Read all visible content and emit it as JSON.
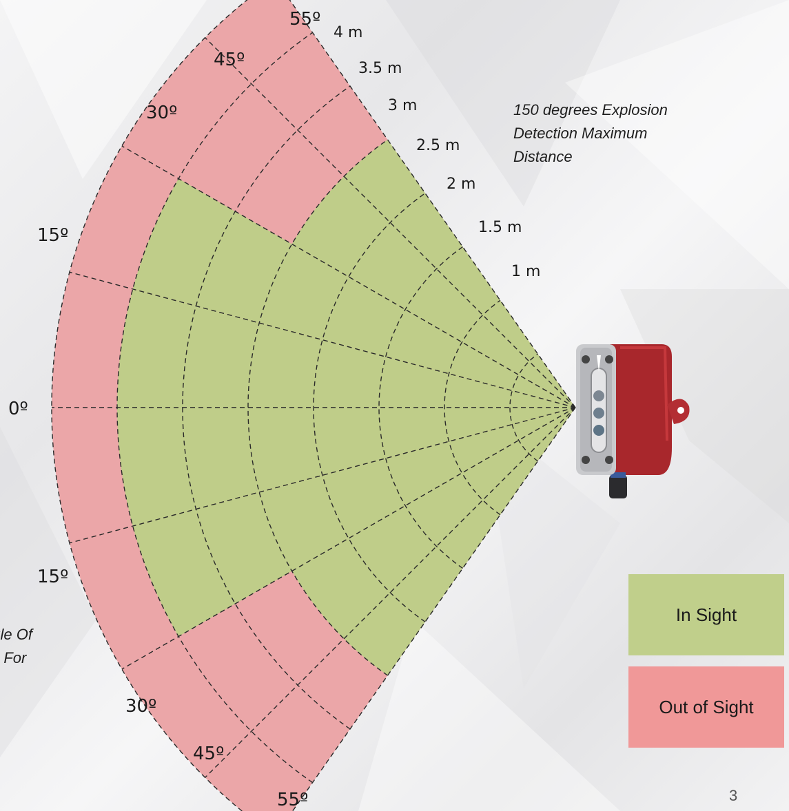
{
  "notes": {
    "top_lines": [
      "150 degrees Explosion",
      "Detection Maximum",
      "Distance"
    ],
    "left_lines": [
      "ngle Of",
      "es For"
    ]
  },
  "angle_labels": {
    "top_55": "55º",
    "top_45": "45º",
    "top_30": "30º",
    "top_15": "15º",
    "center_0": "0º",
    "bottom_15": "15º",
    "bottom_30": "30º",
    "bottom_45": "45º",
    "bottom_55": "55º"
  },
  "distance_labels": [
    "4 m",
    "3.5 m",
    "3 m",
    "2.5 m",
    "2 m",
    "1.5 m",
    "1 m"
  ],
  "legend": {
    "in_sight": "In Sight",
    "out_of_sight": "Out of Sight"
  },
  "page_number": "3",
  "colors": {
    "in_sight": "#c0cf8b",
    "out_of_sight": "#f09898",
    "zone_pink": "#eba6a8",
    "zone_green": "#bfcd89",
    "sensor_housing": "#a8272c"
  },
  "icons": {
    "detector": "flame-detector-icon"
  }
}
